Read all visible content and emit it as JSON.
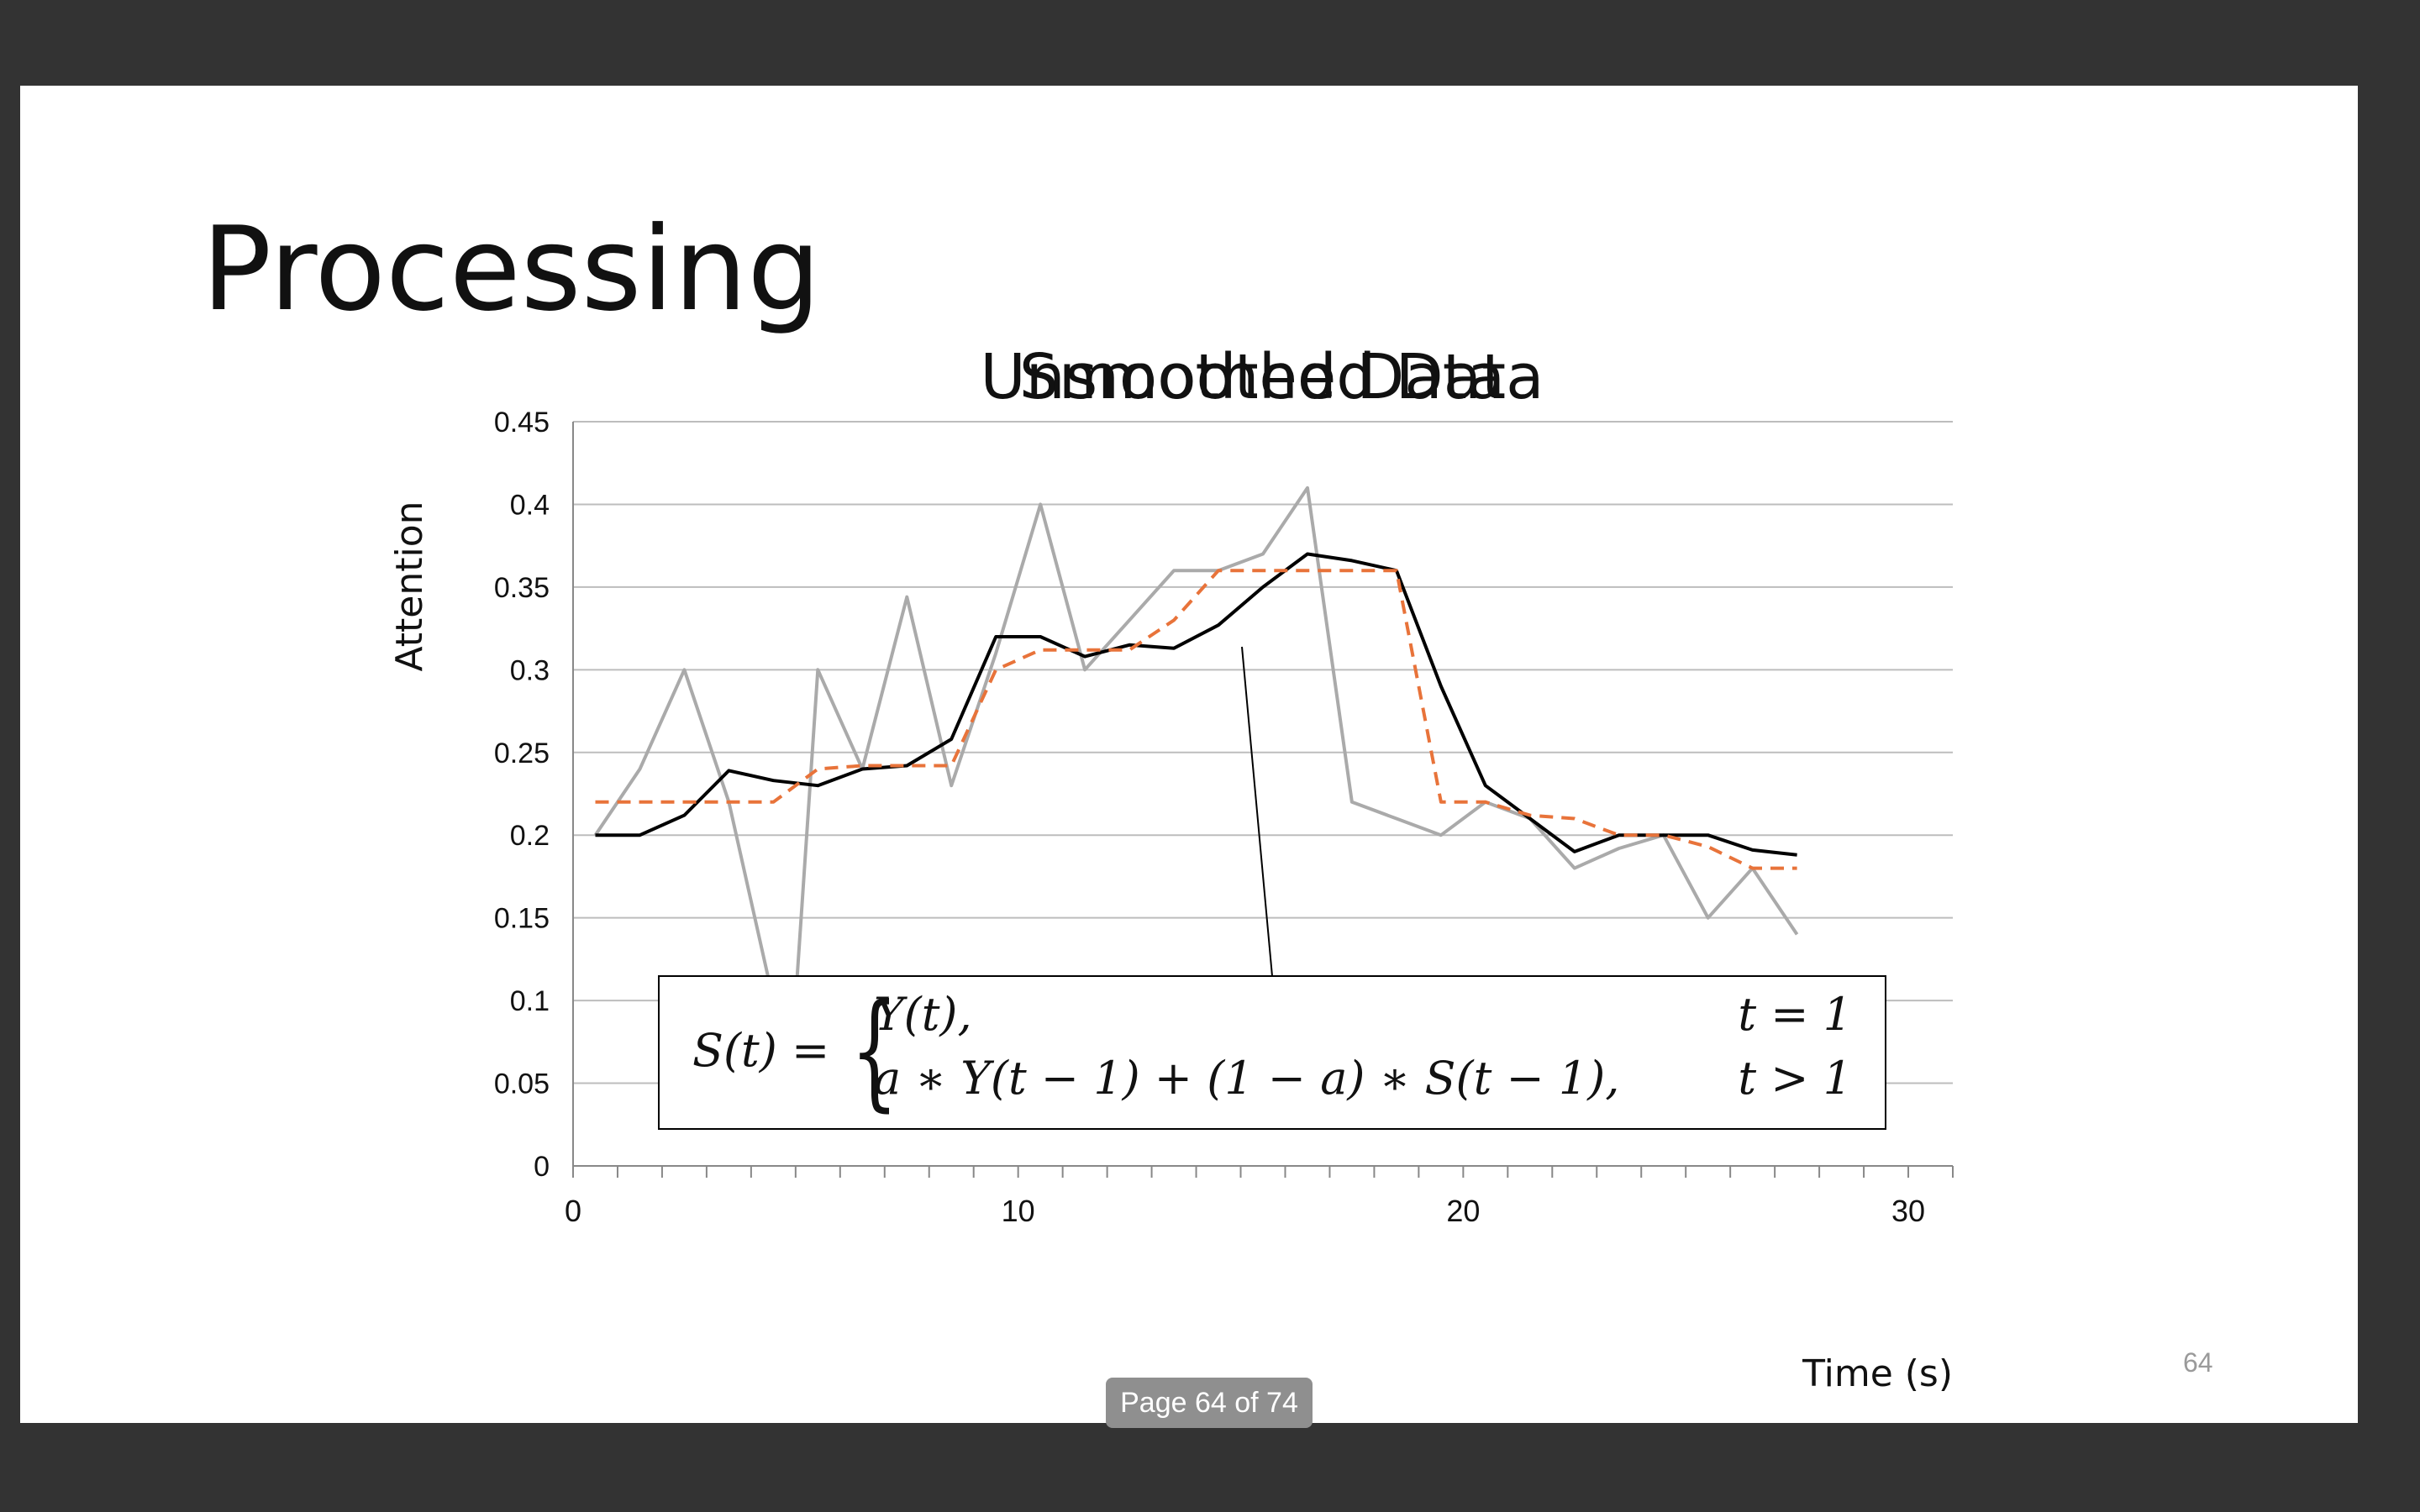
{
  "viewer": {
    "page_indicator": "Page 64 of 74"
  },
  "slide": {
    "title": "Processing",
    "slide_number": "64"
  },
  "chart_data": {
    "type": "line",
    "title_overlaps": [
      "Unsmoothed Data",
      "Smoothed Data"
    ],
    "ylabel": "Attention",
    "xlabel": "Time (s)",
    "xlim": [
      0,
      31
    ],
    "ylim": [
      0,
      0.45
    ],
    "yticks": [
      "0",
      "0.05",
      "0.1",
      "0.15",
      "0.2",
      "0.25",
      "0.3",
      "0.35",
      "0.4",
      "0.45"
    ],
    "xtick_labels": [
      {
        "x": 0,
        "label": "0"
      },
      {
        "x": 10,
        "label": "10"
      },
      {
        "x": 20,
        "label": "20"
      },
      {
        "x": 30,
        "label": "30"
      }
    ],
    "grid": true,
    "series": [
      {
        "color": "#aaaaaa",
        "dash": "solid",
        "x": [
          0.5,
          1.5,
          2.5,
          3.5,
          4.5,
          5,
          5.5,
          6.5,
          7.5,
          8.5,
          9.5,
          10.5,
          11.5,
          12.5,
          13.5,
          14.5,
          15.5,
          16.5,
          17.5,
          18.5,
          19.5,
          20.5,
          21.5,
          22.5,
          23.5,
          24.5,
          25.5,
          26.5,
          27.5,
          28.5,
          29.5
        ],
        "y": [
          0.2,
          0.24,
          0.3,
          0.22,
          0.1,
          0.1,
          0.3,
          0.24,
          0.344,
          0.23,
          0.31,
          0.4,
          0.3,
          0.33,
          0.36,
          0.36,
          0.37,
          0.41,
          0.22,
          0.21,
          0.2,
          0.22,
          0.21,
          0.18,
          0.192,
          0.2,
          0.15,
          0.18,
          0.14,
          null,
          null
        ]
      },
      {
        "color": "#000000",
        "dash": "solid",
        "x": [
          0.5,
          1.5,
          2.5,
          3.5,
          4.5,
          5.5,
          6.5,
          7.5,
          8.5,
          9.5,
          10.5,
          11.5,
          12.5,
          13.5,
          14.5,
          15.5,
          16.5,
          17.5,
          18.5,
          19.5,
          20.5,
          21.5,
          22.5,
          23.5,
          24.5,
          25.5,
          26.5,
          27.5,
          28.5,
          29.5
        ],
        "y": [
          0.2,
          0.2,
          0.212,
          0.239,
          0.233,
          0.23,
          0.24,
          0.242,
          0.258,
          0.32,
          0.32,
          0.308,
          0.315,
          0.313,
          0.327,
          0.35,
          0.37,
          0.366,
          0.36,
          0.29,
          0.23,
          0.21,
          0.19,
          0.2,
          0.2,
          0.2,
          0.191,
          0.188,
          null,
          null
        ]
      },
      {
        "color": "#e8733a",
        "dash": "dashed",
        "x": [
          0.5,
          1.5,
          2.5,
          3.5,
          4.5,
          5.5,
          6.5,
          7.5,
          8.5,
          9.5,
          10.5,
          11.5,
          12.5,
          13.5,
          14.5,
          15.5,
          16.5,
          17.5,
          18.5,
          19.5,
          20.5,
          21.5,
          22.5,
          23.5,
          24.5,
          25.5,
          26.5,
          27.5,
          28.5,
          29.5
        ],
        "y": [
          0.22,
          0.22,
          0.22,
          0.22,
          0.22,
          0.24,
          0.242,
          0.242,
          0.242,
          0.3,
          0.312,
          0.312,
          0.312,
          0.33,
          0.36,
          0.36,
          0.36,
          0.36,
          0.36,
          0.22,
          0.22,
          0.212,
          0.21,
          0.2,
          0.2,
          0.193,
          0.18,
          0.18,
          null,
          null
        ]
      }
    ],
    "formula": {
      "lhs": "S(t) =",
      "case1_expr": "Y(t),",
      "case1_cond": "t = 1",
      "case2_expr": "a ∗ Y(t − 1) + (1 − a) ∗ S(t − 1),",
      "case2_cond": "t > 1"
    }
  }
}
